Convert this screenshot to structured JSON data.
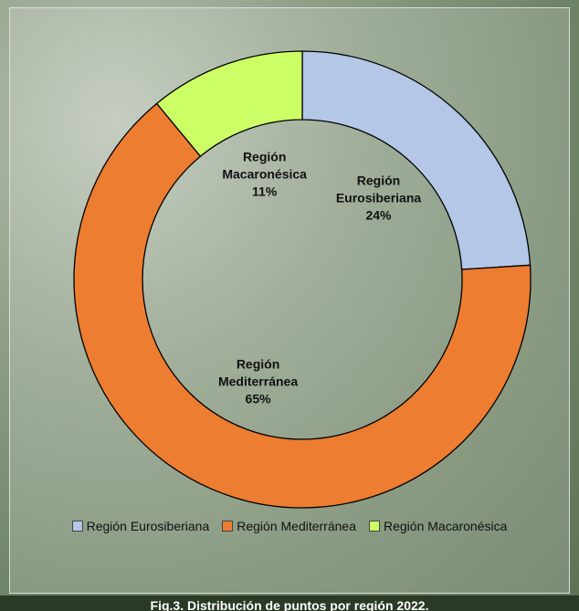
{
  "chart_data": {
    "type": "donut",
    "categories": [
      "Región Eurosiberiana",
      "Región Mediterránea",
      "Región Macaronésica"
    ],
    "values": [
      24,
      65,
      11
    ],
    "value_labels": [
      "24%",
      "65%",
      "11%"
    ],
    "colors": [
      "#b4c7e7",
      "#ed7d31",
      "#ccff66"
    ],
    "legend": "bottom",
    "caption": "Fig.3. Distribución de puntos por región 2022."
  }
}
